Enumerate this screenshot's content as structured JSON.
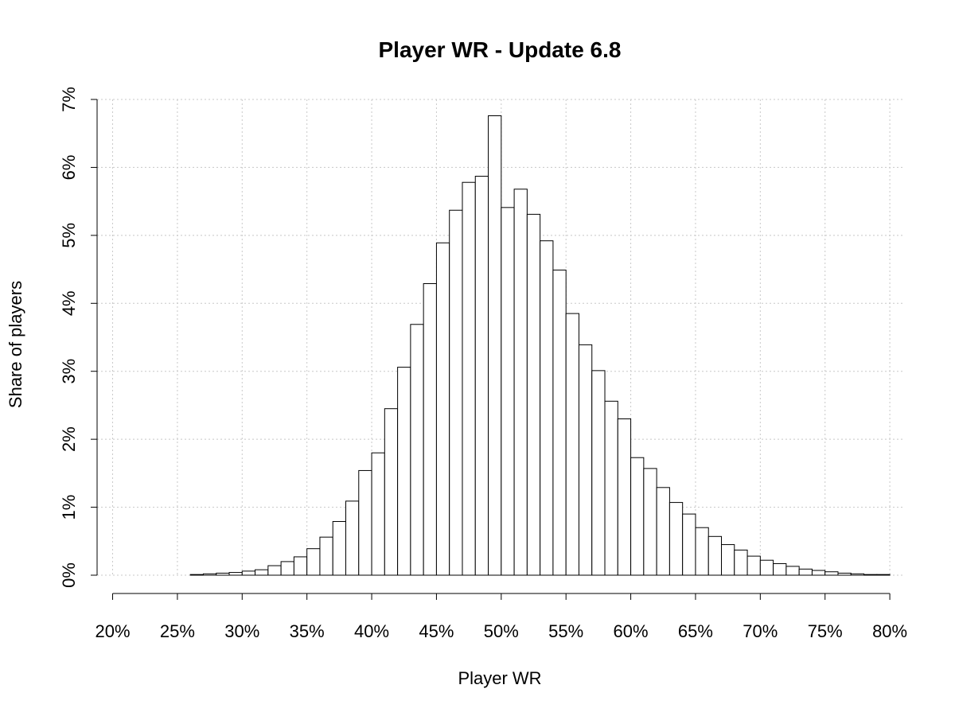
{
  "chart_data": {
    "type": "bar",
    "title": "Player WR - Update 6.8",
    "xlabel": "Player WR",
    "ylabel": "Share of players",
    "xlim": [
      18.8,
      81.1
    ],
    "ylim": [
      0,
      7
    ],
    "x_ticks": [
      20,
      25,
      30,
      35,
      40,
      45,
      50,
      55,
      60,
      65,
      70,
      75,
      80
    ],
    "x_tick_labels": [
      "20%",
      "25%",
      "30%",
      "35%",
      "40%",
      "45%",
      "50%",
      "55%",
      "60%",
      "65%",
      "70%",
      "75%",
      "80%"
    ],
    "y_ticks": [
      0,
      1,
      2,
      3,
      4,
      5,
      6,
      7
    ],
    "y_tick_labels": [
      "0%",
      "1%",
      "2%",
      "3%",
      "4%",
      "5%",
      "6%",
      "7%"
    ],
    "grid": true,
    "bin_width": 1,
    "bin_starts": [
      18,
      19,
      20,
      21,
      22,
      23,
      24,
      25,
      26,
      27,
      28,
      29,
      30,
      31,
      32,
      33,
      34,
      35,
      36,
      37,
      38,
      39,
      40,
      41,
      42,
      43,
      44,
      45,
      46,
      47,
      48,
      49,
      50,
      51,
      52,
      53,
      54,
      55,
      56,
      57,
      58,
      59,
      60,
      61,
      62,
      63,
      64,
      65,
      66,
      67,
      68,
      69,
      70,
      71,
      72,
      73,
      74,
      75,
      76,
      77,
      78,
      79,
      80
    ],
    "values": [
      0,
      0,
      0,
      0,
      0,
      0,
      0,
      0,
      0.01,
      0.02,
      0.03,
      0.04,
      0.06,
      0.08,
      0.14,
      0.2,
      0.27,
      0.39,
      0.56,
      0.79,
      1.09,
      1.54,
      1.8,
      2.45,
      3.06,
      3.69,
      4.29,
      4.89,
      5.37,
      5.78,
      5.87,
      6.76,
      5.41,
      5.68,
      5.31,
      4.92,
      4.49,
      3.85,
      3.39,
      3.01,
      2.56,
      2.3,
      1.73,
      1.57,
      1.29,
      1.07,
      0.9,
      0.7,
      0.57,
      0.45,
      0.37,
      0.28,
      0.22,
      0.17,
      0.13,
      0.09,
      0.07,
      0.05,
      0.03,
      0.02,
      0.01,
      0.01,
      0
    ]
  }
}
